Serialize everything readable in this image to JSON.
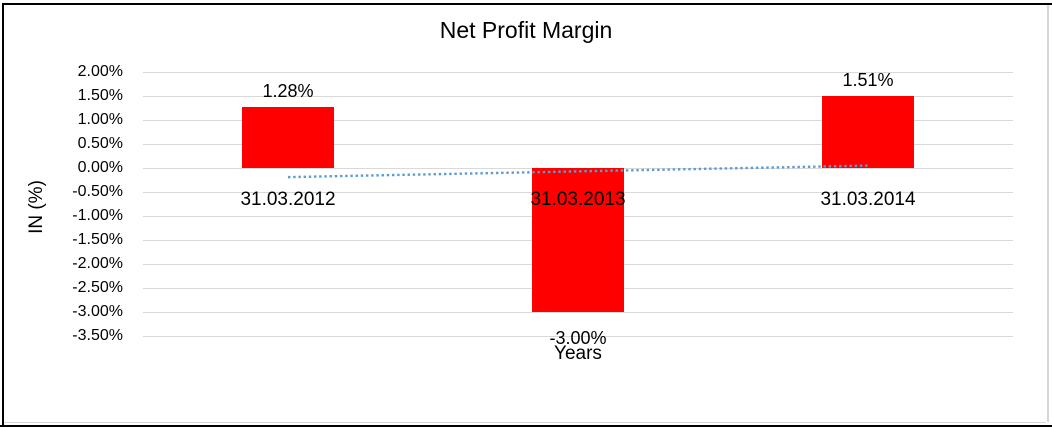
{
  "window": {
    "background": "#FFFFFF",
    "border_color": "#000000",
    "object_border_color": "#D6D6D6"
  },
  "chart_data": {
    "type": "bar",
    "title": "Net Profit Margin",
    "xlabel": "Years",
    "ylabel": "IN (%)",
    "categories": [
      "31.03.2012",
      "31.03.2013",
      "31.03.2014"
    ],
    "series": [
      {
        "name": "Net Profit Margin",
        "values": [
          1.28,
          -3.0,
          1.51
        ]
      }
    ],
    "data_labels": [
      "1.28%",
      "-3.00%",
      "1.51%"
    ],
    "y_ticks": [
      "2.00%",
      "1.50%",
      "1.00%",
      "0.50%",
      "0.00%",
      "-0.50%",
      "-1.00%",
      "-1.50%",
      "-2.00%",
      "-2.50%",
      "-3.00%",
      "-3.50%"
    ],
    "ylim": [
      -3.5,
      2.0
    ],
    "y_step": 0.5,
    "grid": true,
    "legend_position": "none",
    "bar_color": "#FF0000",
    "gridline_color": "#D9D9D9",
    "trendline": {
      "type": "linear",
      "style": "dotted",
      "color": "#5B9BD5",
      "start_value": -0.19,
      "end_value": 0.05
    }
  }
}
